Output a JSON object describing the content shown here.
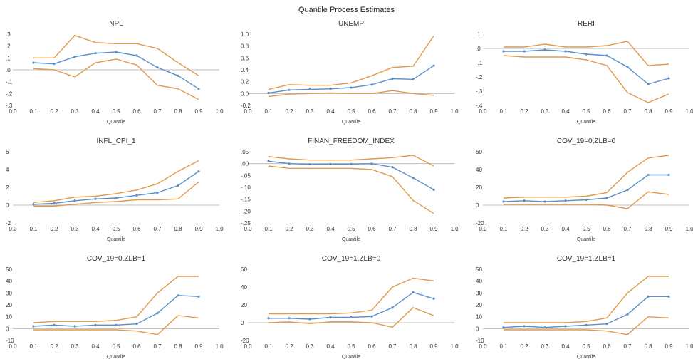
{
  "title": "Quantile Process Estimates",
  "colors": {
    "estimate": "#5b8fc9",
    "band": "#e19a4b",
    "zero": "#bdbdbd"
  },
  "chart_data": [
    {
      "type": "line",
      "title": "NPL",
      "xlabel": "Quantile",
      "xlim": [
        0,
        1
      ],
      "ylim": [
        -0.3,
        0.3
      ],
      "yticks": [
        ".3",
        ".2",
        ".1",
        ".0",
        "-.1",
        "-.2",
        "-.3"
      ],
      "x": [
        0.1,
        0.2,
        0.3,
        0.4,
        0.5,
        0.6,
        0.7,
        0.8,
        0.9
      ],
      "series": [
        {
          "role": "upper",
          "values": [
            0.1,
            0.1,
            0.29,
            0.23,
            0.22,
            0.22,
            0.18,
            0.06,
            -0.05
          ]
        },
        {
          "role": "estimate",
          "values": [
            0.06,
            0.05,
            0.11,
            0.14,
            0.15,
            0.12,
            0.02,
            -0.05,
            -0.16
          ]
        },
        {
          "role": "lower",
          "values": [
            0.01,
            0.0,
            -0.06,
            0.06,
            0.09,
            0.04,
            -0.13,
            -0.16,
            -0.25
          ]
        }
      ]
    },
    {
      "type": "line",
      "title": "UNEMP",
      "xlabel": "Quantile",
      "xlim": [
        0,
        1
      ],
      "ylim": [
        -0.2,
        1.0
      ],
      "yticks": [
        "1.0",
        "0.8",
        "0.6",
        "0.4",
        "0.2",
        "0.0",
        "-0.2"
      ],
      "x": [
        0.1,
        0.2,
        0.3,
        0.4,
        0.5,
        0.6,
        0.7,
        0.8,
        0.9
      ],
      "series": [
        {
          "role": "upper",
          "values": [
            0.07,
            0.15,
            0.14,
            0.14,
            0.18,
            0.3,
            0.44,
            0.46,
            0.97
          ]
        },
        {
          "role": "estimate",
          "values": [
            0.01,
            0.06,
            0.07,
            0.08,
            0.1,
            0.15,
            0.25,
            0.24,
            0.47
          ]
        },
        {
          "role": "lower",
          "values": [
            -0.05,
            -0.01,
            0.0,
            0.01,
            0.0,
            0.0,
            0.05,
            0.0,
            -0.03
          ]
        }
      ]
    },
    {
      "type": "line",
      "title": "RERI",
      "xlabel": "Quantile",
      "xlim": [
        0,
        1
      ],
      "ylim": [
        -0.4,
        0.1
      ],
      "yticks": [
        ".1",
        ".0",
        "-.1",
        "-.2",
        "-.3",
        "-.4"
      ],
      "x": [
        0.1,
        0.2,
        0.3,
        0.4,
        0.5,
        0.6,
        0.7,
        0.8,
        0.9
      ],
      "series": [
        {
          "role": "upper",
          "values": [
            0.01,
            0.01,
            0.03,
            0.01,
            0.01,
            0.02,
            0.05,
            -0.12,
            -0.11
          ]
        },
        {
          "role": "estimate",
          "values": [
            -0.02,
            -0.02,
            -0.01,
            -0.02,
            -0.04,
            -0.05,
            -0.13,
            -0.25,
            -0.21
          ]
        },
        {
          "role": "lower",
          "values": [
            -0.05,
            -0.06,
            -0.06,
            -0.06,
            -0.08,
            -0.12,
            -0.31,
            -0.38,
            -0.32
          ]
        }
      ]
    },
    {
      "type": "line",
      "title": "INFL_CPI_1",
      "xlabel": "Quantile",
      "xlim": [
        0,
        1
      ],
      "ylim": [
        -2,
        6
      ],
      "yticks": [
        "6",
        "4",
        "2",
        "0",
        "-2"
      ],
      "x": [
        0.1,
        0.2,
        0.3,
        0.4,
        0.5,
        0.6,
        0.7,
        0.8,
        0.9
      ],
      "series": [
        {
          "role": "upper",
          "values": [
            0.3,
            0.5,
            0.9,
            1.0,
            1.3,
            1.7,
            2.4,
            3.8,
            5.0
          ]
        },
        {
          "role": "estimate",
          "values": [
            0.1,
            0.2,
            0.5,
            0.7,
            0.8,
            1.1,
            1.4,
            2.2,
            3.8
          ]
        },
        {
          "role": "lower",
          "values": [
            -0.1,
            -0.1,
            0.1,
            0.3,
            0.4,
            0.6,
            0.6,
            0.7,
            2.6
          ]
        }
      ]
    },
    {
      "type": "line",
      "title": "FINAN_FREEDOM_INDEX",
      "xlabel": "Quantile",
      "xlim": [
        0,
        1
      ],
      "ylim": [
        -0.25,
        0.05
      ],
      "yticks": [
        ".05",
        ".00",
        "-.05",
        "-.10",
        "-.15",
        "-.20",
        "-.25"
      ],
      "x": [
        0.1,
        0.2,
        0.3,
        0.4,
        0.5,
        0.6,
        0.7,
        0.8,
        0.9
      ],
      "series": [
        {
          "role": "upper",
          "values": [
            0.03,
            0.02,
            0.015,
            0.015,
            0.015,
            0.02,
            0.025,
            0.035,
            -0.01
          ]
        },
        {
          "role": "estimate",
          "values": [
            0.01,
            0.0,
            -0.003,
            -0.002,
            -0.002,
            0.0,
            -0.015,
            -0.06,
            -0.11
          ]
        },
        {
          "role": "lower",
          "values": [
            -0.01,
            -0.02,
            -0.02,
            -0.02,
            -0.02,
            -0.025,
            -0.055,
            -0.155,
            -0.21
          ]
        }
      ]
    },
    {
      "type": "line",
      "title": "COV_19=0,ZLB=0",
      "xlabel": "Quantile",
      "xlim": [
        0,
        1
      ],
      "ylim": [
        -20,
        60
      ],
      "yticks": [
        "60",
        "40",
        "20",
        "0",
        "-20"
      ],
      "x": [
        0.1,
        0.2,
        0.3,
        0.4,
        0.5,
        0.6,
        0.7,
        0.8,
        0.9
      ],
      "series": [
        {
          "role": "upper",
          "values": [
            8,
            9,
            9,
            9,
            10,
            14,
            37,
            53,
            56
          ]
        },
        {
          "role": "estimate",
          "values": [
            4,
            5,
            4,
            5,
            6,
            8,
            17,
            34,
            34
          ]
        },
        {
          "role": "lower",
          "values": [
            1,
            1,
            1,
            1,
            1,
            0,
            -4,
            15,
            12
          ]
        }
      ]
    },
    {
      "type": "line",
      "title": "COV_19=0,ZLB=1",
      "xlabel": "Quantile",
      "xlim": [
        0,
        1
      ],
      "ylim": [
        -10,
        50
      ],
      "yticks": [
        "50",
        "40",
        "30",
        "20",
        "10",
        "0",
        "-10"
      ],
      "x": [
        0.1,
        0.2,
        0.3,
        0.4,
        0.5,
        0.6,
        0.7,
        0.8,
        0.9
      ],
      "series": [
        {
          "role": "upper",
          "values": [
            5,
            6,
            6,
            6,
            7,
            10,
            30,
            44,
            44
          ]
        },
        {
          "role": "estimate",
          "values": [
            2,
            3,
            2,
            3,
            3,
            4,
            13,
            28,
            27
          ]
        },
        {
          "role": "lower",
          "values": [
            -1,
            -1,
            -1,
            -1,
            -1,
            -2,
            -5,
            11,
            9
          ]
        }
      ]
    },
    {
      "type": "line",
      "title": "COV_19=1,ZLB=0",
      "xlabel": "Quantile",
      "xlim": [
        0,
        1
      ],
      "ylim": [
        -20,
        60
      ],
      "yticks": [
        "60",
        "40",
        "20",
        "0",
        "-20"
      ],
      "x": [
        0.1,
        0.2,
        0.3,
        0.4,
        0.5,
        0.6,
        0.7,
        0.8,
        0.9
      ],
      "series": [
        {
          "role": "upper",
          "values": [
            10,
            10,
            10,
            10,
            11,
            14,
            40,
            50,
            47
          ]
        },
        {
          "role": "estimate",
          "values": [
            5,
            5,
            4,
            6,
            6,
            7,
            17,
            34,
            27
          ]
        },
        {
          "role": "lower",
          "values": [
            0,
            1,
            -1,
            1,
            1,
            0,
            -5,
            17,
            8
          ]
        }
      ]
    },
    {
      "type": "line",
      "title": "COV_19=1,ZLB=1",
      "xlabel": "Quantile",
      "xlim": [
        0,
        1
      ],
      "ylim": [
        -10,
        50
      ],
      "yticks": [
        "50",
        "40",
        "30",
        "20",
        "10",
        "0",
        "-10"
      ],
      "x": [
        0.1,
        0.2,
        0.3,
        0.4,
        0.5,
        0.6,
        0.7,
        0.8,
        0.9
      ],
      "series": [
        {
          "role": "upper",
          "values": [
            5,
            5,
            5,
            5,
            6,
            9,
            30,
            44,
            44
          ]
        },
        {
          "role": "estimate",
          "values": [
            1,
            2,
            1,
            2,
            3,
            4,
            12,
            27,
            27
          ]
        },
        {
          "role": "lower",
          "values": [
            -1,
            -1,
            -1,
            -1,
            -1,
            -2,
            -5,
            10,
            9
          ]
        }
      ]
    }
  ],
  "xticks": [
    "0.0",
    "0.1",
    "0.2",
    "0.3",
    "0.4",
    "0.5",
    "0.6",
    "0.7",
    "0.8",
    "0.9",
    "1.0"
  ]
}
